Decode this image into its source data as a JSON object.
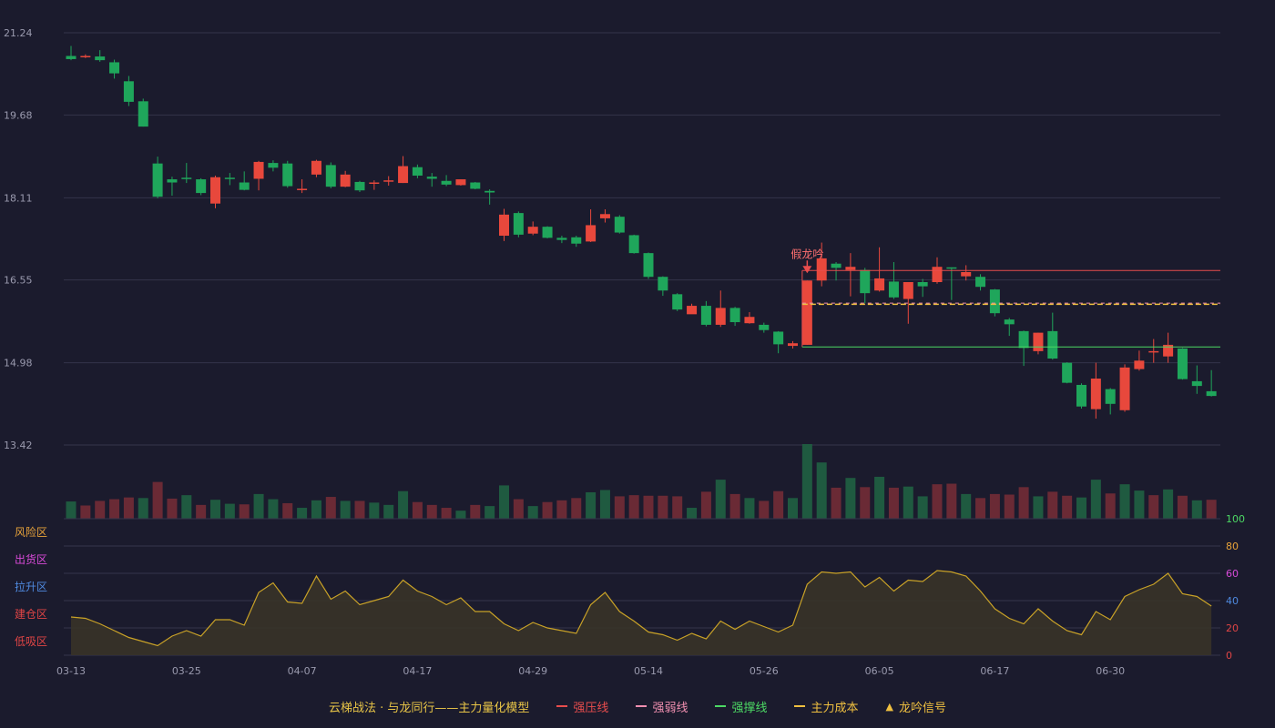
{
  "chart_data": {
    "type": "candlestick",
    "y_ticks": [
      "21.24",
      "19.68",
      "18.11",
      "16.55",
      "14.98",
      "13.42"
    ],
    "y_range": [
      13.42,
      21.24
    ],
    "x_tick_labels": [
      {
        "i": 0,
        "label": "03-13"
      },
      {
        "i": 8,
        "label": "03-25"
      },
      {
        "i": 16,
        "label": "04-07"
      },
      {
        "i": 24,
        "label": "04-17"
      },
      {
        "i": 32,
        "label": "04-29"
      },
      {
        "i": 40,
        "label": "05-14"
      },
      {
        "i": 48,
        "label": "05-26"
      },
      {
        "i": 56,
        "label": "06-05"
      },
      {
        "i": 64,
        "label": "06-17"
      },
      {
        "i": 72,
        "label": "06-30"
      }
    ],
    "candles": [
      [
        20.8,
        20.74,
        20.99,
        20.72
      ],
      [
        20.8,
        20.8,
        20.83,
        20.76
      ],
      [
        20.79,
        20.72,
        20.91,
        20.69
      ],
      [
        20.68,
        20.47,
        20.73,
        20.37
      ],
      [
        20.32,
        19.93,
        20.42,
        19.85
      ],
      [
        19.94,
        19.46,
        19.99,
        19.46
      ],
      [
        18.76,
        18.13,
        18.89,
        18.1
      ],
      [
        18.46,
        18.4,
        18.51,
        18.15
      ],
      [
        18.49,
        18.47,
        18.77,
        18.39
      ],
      [
        18.46,
        18.2,
        18.48,
        18.16
      ],
      [
        18.0,
        18.5,
        18.53,
        17.91
      ],
      [
        18.49,
        18.47,
        18.58,
        18.35
      ],
      [
        18.4,
        18.26,
        18.61,
        18.25
      ],
      [
        18.47,
        18.79,
        18.81,
        18.25
      ],
      [
        18.77,
        18.68,
        18.82,
        18.61
      ],
      [
        18.76,
        18.33,
        18.81,
        18.3
      ],
      [
        18.28,
        18.28,
        18.46,
        18.2
      ],
      [
        18.55,
        18.81,
        18.83,
        18.5
      ],
      [
        18.73,
        18.32,
        18.78,
        18.29
      ],
      [
        18.32,
        18.55,
        18.62,
        18.31
      ],
      [
        18.41,
        18.25,
        18.43,
        18.22
      ],
      [
        18.4,
        18.4,
        18.44,
        18.26
      ],
      [
        18.44,
        18.44,
        18.52,
        18.34
      ],
      [
        18.39,
        18.71,
        18.9,
        18.39
      ],
      [
        18.69,
        18.53,
        18.74,
        18.48
      ],
      [
        18.51,
        18.47,
        18.58,
        18.32
      ],
      [
        18.43,
        18.36,
        18.54,
        18.33
      ],
      [
        18.35,
        18.46,
        18.46,
        18.34
      ],
      [
        18.4,
        18.28,
        18.41,
        18.27
      ],
      [
        18.24,
        18.21,
        18.27,
        17.98
      ],
      [
        17.39,
        17.79,
        17.9,
        17.29
      ],
      [
        17.82,
        17.41,
        17.85,
        17.36
      ],
      [
        17.43,
        17.56,
        17.66,
        17.4
      ],
      [
        17.56,
        17.35,
        17.57,
        17.34
      ],
      [
        17.35,
        17.31,
        17.39,
        17.25
      ],
      [
        17.36,
        17.24,
        17.39,
        17.18
      ],
      [
        17.28,
        17.59,
        17.89,
        17.27
      ],
      [
        17.72,
        17.8,
        17.89,
        17.64
      ],
      [
        17.75,
        17.45,
        17.78,
        17.43
      ],
      [
        17.4,
        17.06,
        17.41,
        17.05
      ],
      [
        17.06,
        16.61,
        17.07,
        16.57
      ],
      [
        16.61,
        16.35,
        16.62,
        16.25
      ],
      [
        16.28,
        15.99,
        16.3,
        15.96
      ],
      [
        15.9,
        16.06,
        16.1,
        15.91
      ],
      [
        16.06,
        15.7,
        16.15,
        15.67
      ],
      [
        15.7,
        16.02,
        16.35,
        15.66
      ],
      [
        16.02,
        15.75,
        16.04,
        15.68
      ],
      [
        15.73,
        15.85,
        15.94,
        15.72
      ],
      [
        15.7,
        15.6,
        15.74,
        15.55
      ],
      [
        15.57,
        15.33,
        15.58,
        15.16
      ],
      [
        15.3,
        15.35,
        15.39,
        15.25
      ],
      [
        15.32,
        16.54,
        16.54,
        15.32
      ],
      [
        16.54,
        16.96,
        17.26,
        16.43
      ],
      [
        16.86,
        16.78,
        16.89,
        16.54
      ],
      [
        16.74,
        16.8,
        17.06,
        16.24
      ],
      [
        16.74,
        16.3,
        16.78,
        16.11
      ],
      [
        16.35,
        16.58,
        17.17,
        16.33
      ],
      [
        16.52,
        16.22,
        16.89,
        16.19
      ],
      [
        16.19,
        16.51,
        16.51,
        15.72
      ],
      [
        16.51,
        16.43,
        16.57,
        16.23
      ],
      [
        16.51,
        16.8,
        16.98,
        16.48
      ],
      [
        16.79,
        16.78,
        16.79,
        16.17
      ],
      [
        16.62,
        16.7,
        16.83,
        16.54
      ],
      [
        16.61,
        16.42,
        16.66,
        16.35
      ],
      [
        16.37,
        15.92,
        16.38,
        15.86
      ],
      [
        15.8,
        15.71,
        15.83,
        15.49
      ],
      [
        15.58,
        15.26,
        15.59,
        14.92
      ],
      [
        15.2,
        15.55,
        15.55,
        15.14
      ],
      [
        15.58,
        15.06,
        15.93,
        15.04
      ],
      [
        14.98,
        14.6,
        14.99,
        14.59
      ],
      [
        14.56,
        14.15,
        14.59,
        14.11
      ],
      [
        14.1,
        14.68,
        14.98,
        13.92
      ],
      [
        14.48,
        14.2,
        14.5,
        14.0
      ],
      [
        14.08,
        14.89,
        14.95,
        14.05
      ],
      [
        14.86,
        15.02,
        15.21,
        14.83
      ],
      [
        15.18,
        15.2,
        15.43,
        14.98
      ],
      [
        15.1,
        15.32,
        15.55,
        14.98
      ],
      [
        15.25,
        14.67,
        15.26,
        14.66
      ],
      [
        14.63,
        14.54,
        14.93,
        14.39
      ],
      [
        14.44,
        14.35,
        14.84,
        14.34
      ]
    ],
    "volume": [
      {
        "v": 30,
        "u": 0
      },
      {
        "v": 23,
        "u": 1
      },
      {
        "v": 31,
        "u": 1
      },
      {
        "v": 34,
        "u": 1
      },
      {
        "v": 37,
        "u": 1
      },
      {
        "v": 36,
        "u": 0
      },
      {
        "v": 64,
        "u": 1
      },
      {
        "v": 35,
        "u": 1
      },
      {
        "v": 41,
        "u": 0
      },
      {
        "v": 24,
        "u": 1
      },
      {
        "v": 33,
        "u": 0
      },
      {
        "v": 26,
        "u": 0
      },
      {
        "v": 25,
        "u": 1
      },
      {
        "v": 43,
        "u": 0
      },
      {
        "v": 34,
        "u": 0
      },
      {
        "v": 27,
        "u": 1
      },
      {
        "v": 19,
        "u": 0
      },
      {
        "v": 32,
        "u": 0
      },
      {
        "v": 38,
        "u": 1
      },
      {
        "v": 31,
        "u": 0
      },
      {
        "v": 31,
        "u": 1
      },
      {
        "v": 28,
        "u": 0
      },
      {
        "v": 24,
        "u": 0
      },
      {
        "v": 48,
        "u": 0
      },
      {
        "v": 29,
        "u": 1
      },
      {
        "v": 24,
        "u": 1
      },
      {
        "v": 19,
        "u": 1
      },
      {
        "v": 14,
        "u": 0
      },
      {
        "v": 24,
        "u": 1
      },
      {
        "v": 22,
        "u": 0
      },
      {
        "v": 58,
        "u": 0
      },
      {
        "v": 34,
        "u": 1
      },
      {
        "v": 22,
        "u": 0
      },
      {
        "v": 29,
        "u": 1
      },
      {
        "v": 32,
        "u": 1
      },
      {
        "v": 36,
        "u": 1
      },
      {
        "v": 46,
        "u": 0
      },
      {
        "v": 50,
        "u": 0
      },
      {
        "v": 39,
        "u": 1
      },
      {
        "v": 41,
        "u": 1
      },
      {
        "v": 40,
        "u": 1
      },
      {
        "v": 40,
        "u": 1
      },
      {
        "v": 39,
        "u": 1
      },
      {
        "v": 19,
        "u": 0
      },
      {
        "v": 47,
        "u": 1
      },
      {
        "v": 68,
        "u": 0
      },
      {
        "v": 43,
        "u": 1
      },
      {
        "v": 36,
        "u": 0
      },
      {
        "v": 31,
        "u": 1
      },
      {
        "v": 48,
        "u": 1
      },
      {
        "v": 36,
        "u": 0
      },
      {
        "v": 130,
        "u": 0
      },
      {
        "v": 98,
        "u": 0
      },
      {
        "v": 54,
        "u": 1
      },
      {
        "v": 71,
        "u": 0
      },
      {
        "v": 55,
        "u": 1
      },
      {
        "v": 73,
        "u": 0
      },
      {
        "v": 54,
        "u": 1
      },
      {
        "v": 56,
        "u": 0
      },
      {
        "v": 39,
        "u": 0
      },
      {
        "v": 60,
        "u": 1
      },
      {
        "v": 61,
        "u": 1
      },
      {
        "v": 43,
        "u": 0
      },
      {
        "v": 36,
        "u": 1
      },
      {
        "v": 43,
        "u": 1
      },
      {
        "v": 42,
        "u": 1
      },
      {
        "v": 55,
        "u": 1
      },
      {
        "v": 39,
        "u": 0
      },
      {
        "v": 47,
        "u": 1
      },
      {
        "v": 40,
        "u": 1
      },
      {
        "v": 37,
        "u": 0
      },
      {
        "v": 68,
        "u": 0
      },
      {
        "v": 44,
        "u": 1
      },
      {
        "v": 60,
        "u": 0
      },
      {
        "v": 49,
        "u": 0
      },
      {
        "v": 41,
        "u": 1
      },
      {
        "v": 51,
        "u": 0
      },
      {
        "v": 40,
        "u": 1
      },
      {
        "v": 32,
        "u": 0
      },
      {
        "v": 33,
        "u": 1
      }
    ],
    "oscillator": {
      "range": [
        0,
        100
      ],
      "right_ticks": [
        "100",
        "80",
        "60",
        "40",
        "20",
        "0"
      ],
      "zones": [
        {
          "label": "风险区",
          "color": "#e8a33a"
        },
        {
          "label": "出货区",
          "color": "#d84ad8"
        },
        {
          "label": "拉升区",
          "color": "#4f8ae0"
        },
        {
          "label": "建仓区",
          "color": "#e04545"
        },
        {
          "label": "低吸区",
          "color": "#e04545"
        }
      ],
      "values": [
        28,
        27,
        23,
        18,
        13,
        10,
        7,
        14,
        18,
        14,
        26,
        26,
        22,
        46,
        53,
        39,
        38,
        58,
        41,
        47,
        37,
        40,
        43,
        55,
        47,
        43,
        37,
        42,
        32,
        32,
        23,
        18,
        24,
        20,
        18,
        16,
        37,
        46,
        32,
        25,
        17,
        15,
        11,
        16,
        12,
        25,
        19,
        25,
        21,
        17,
        22,
        52,
        61,
        60,
        61,
        50,
        57,
        47,
        55,
        54,
        62,
        61,
        58,
        47,
        34,
        27,
        23,
        34,
        25,
        18,
        15,
        32,
        26,
        43,
        48,
        52,
        60,
        45,
        43,
        36
      ]
    },
    "annotations": {
      "signal_label": "假龙吟",
      "signal_index": 51,
      "resistance": {
        "start": 51,
        "price": 16.73,
        "color": "#e84d4d"
      },
      "support": {
        "start": 51,
        "price": 15.28,
        "color": "#4cd964"
      },
      "weak_line": {
        "start": 51,
        "price": 16.11,
        "color": "#f08fb0"
      },
      "cost_line": {
        "start": 51,
        "price": 16.09,
        "color": "#f0c040"
      }
    },
    "colors": {
      "up": "#e8483c",
      "down": "#1fa65b",
      "vol_up": "#6a2a35",
      "vol_down": "#1f5a40",
      "osc_line": "#c9a227"
    }
  },
  "legend": {
    "title": "云梯战法 · 与龙同行——主力量化模型",
    "items": [
      {
        "label": "强压线",
        "color": "#e84d4d",
        "style": "solid"
      },
      {
        "label": "强弱线",
        "color": "#f08fb0",
        "style": "dash"
      },
      {
        "label": "强撑线",
        "color": "#4cd964",
        "style": "solid"
      },
      {
        "label": "主力成本",
        "color": "#f0c040",
        "style": "dash"
      },
      {
        "label": "龙吟信号",
        "color": "#f0c040",
        "style": "triangle"
      }
    ]
  }
}
